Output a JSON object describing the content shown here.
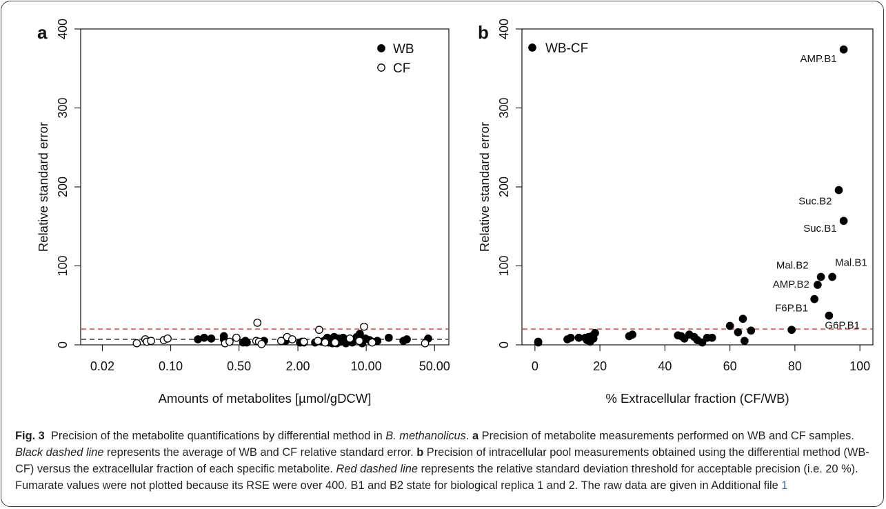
{
  "chart_data": [
    {
      "panel_label": "a",
      "type": "scatter",
      "xscale": "log",
      "xlim": [
        0.012,
        70
      ],
      "ylim": [
        0,
        400
      ],
      "xticks": [
        0.02,
        0.1,
        0.5,
        2,
        10,
        50
      ],
      "xtick_labels": [
        "0.02",
        "0.10",
        "0.50",
        "2.00",
        "10.00",
        "50.00"
      ],
      "yticks": [
        0,
        100,
        200,
        300,
        400
      ],
      "ytick_labels": [
        "0",
        "100",
        "200",
        "300",
        "400"
      ],
      "xlabel": "Amounts of metabolites [µmol/gDCW]",
      "ylabel": "Relative standard error",
      "legend_position": "top-right",
      "hlines": [
        {
          "y": 20,
          "color": "#e8302a",
          "style": "dashed"
        },
        {
          "y": 7,
          "color": "#222222",
          "style": "dashed"
        }
      ],
      "series": [
        {
          "name": "WB",
          "marker": "filled-circle",
          "points": [
            [
              0.19,
              7
            ],
            [
              0.22,
              9
            ],
            [
              0.26,
              8
            ],
            [
              0.35,
              11
            ],
            [
              0.35,
              7
            ],
            [
              0.55,
              3
            ],
            [
              0.58,
              5
            ],
            [
              0.6,
              3
            ],
            [
              0.9,
              5
            ],
            [
              1.5,
              5
            ],
            [
              2.1,
              3
            ],
            [
              2.2,
              4
            ],
            [
              2.3,
              3
            ],
            [
              3.0,
              3
            ],
            [
              3.5,
              4
            ],
            [
              3.8,
              6
            ],
            [
              4.0,
              9
            ],
            [
              4.1,
              3
            ],
            [
              4.3,
              7
            ],
            [
              4.5,
              2
            ],
            [
              4.7,
              10
            ],
            [
              4.9,
              5
            ],
            [
              5.0,
              2
            ],
            [
              5.2,
              8
            ],
            [
              5.5,
              4
            ],
            [
              5.8,
              9
            ],
            [
              6.2,
              2
            ],
            [
              6.8,
              5
            ],
            [
              7.2,
              3
            ],
            [
              8.0,
              10
            ],
            [
              8.6,
              14
            ],
            [
              9.1,
              2
            ],
            [
              9.8,
              8
            ],
            [
              10.8,
              6
            ],
            [
              11.5,
              4
            ],
            [
              13.0,
              5
            ],
            [
              17.0,
              9
            ],
            [
              24.0,
              5
            ],
            [
              26.0,
              7
            ],
            [
              43.0,
              8
            ]
          ]
        },
        {
          "name": "CF",
          "marker": "open-circle",
          "points": [
            [
              0.045,
              2
            ],
            [
              0.055,
              7
            ],
            [
              0.057,
              4
            ],
            [
              0.063,
              5
            ],
            [
              0.085,
              6
            ],
            [
              0.093,
              8
            ],
            [
              0.36,
              2
            ],
            [
              0.4,
              4
            ],
            [
              0.47,
              9
            ],
            [
              0.75,
              5
            ],
            [
              0.77,
              28
            ],
            [
              0.8,
              4
            ],
            [
              0.85,
              1
            ],
            [
              1.35,
              5
            ],
            [
              1.55,
              10
            ],
            [
              1.75,
              7
            ],
            [
              2.3,
              4
            ],
            [
              3.2,
              5
            ],
            [
              3.3,
              19
            ],
            [
              3.8,
              3
            ],
            [
              4.8,
              3
            ],
            [
              6.8,
              8
            ],
            [
              8.5,
              5
            ],
            [
              9.5,
              23
            ],
            [
              11.5,
              3
            ],
            [
              40.0,
              2
            ]
          ]
        }
      ]
    },
    {
      "panel_label": "b",
      "type": "scatter",
      "xlim": [
        -4,
        104
      ],
      "ylim": [
        0,
        400
      ],
      "xticks": [
        0,
        20,
        40,
        60,
        80,
        100
      ],
      "xtick_labels": [
        "0",
        "20",
        "40",
        "60",
        "80",
        "100"
      ],
      "yticks": [
        0,
        100,
        200,
        300,
        400
      ],
      "ytick_labels": [
        "0",
        "100",
        "200",
        "300",
        "400"
      ],
      "xlabel": "% Extracellular fraction (CF/WB)",
      "ylabel": "Relative standard error",
      "legend_position": "top-left",
      "hlines": [
        {
          "y": 20,
          "color": "#e8302a",
          "style": "dashed"
        }
      ],
      "series": [
        {
          "name": "WB-CF",
          "marker": "filled-circle",
          "points": [
            [
              1,
              3
            ],
            [
              1,
              4
            ],
            [
              10,
              7
            ],
            [
              11,
              9
            ],
            [
              13.5,
              9
            ],
            [
              15.5,
              9
            ],
            [
              16,
              6
            ],
            [
              16.5,
              10
            ],
            [
              17,
              4
            ],
            [
              17.5,
              11
            ],
            [
              18,
              8
            ],
            [
              18.5,
              15
            ],
            [
              29,
              11
            ],
            [
              30,
              13
            ],
            [
              44,
              12
            ],
            [
              45,
              11
            ],
            [
              46,
              8
            ],
            [
              47.5,
              13
            ],
            [
              49,
              10
            ],
            [
              50,
              6
            ],
            [
              51.5,
              3
            ],
            [
              53,
              9
            ],
            [
              54.5,
              9
            ],
            [
              60,
              24
            ],
            [
              62.5,
              16
            ],
            [
              64,
              33
            ],
            [
              64.5,
              5
            ],
            [
              66.5,
              18
            ],
            [
              79,
              19
            ],
            [
              86,
              58
            ],
            [
              87,
              76
            ],
            [
              88,
              86
            ],
            [
              90.5,
              37
            ],
            [
              91.5,
              86
            ],
            [
              93.5,
              196
            ],
            [
              95,
              157
            ],
            [
              95,
              374
            ]
          ],
          "labeled_points": [
            {
              "label": "AMP.B1",
              "x": 95,
              "y": 374
            },
            {
              "label": "Suc.B2",
              "x": 93.5,
              "y": 196
            },
            {
              "label": "Suc.B1",
              "x": 95,
              "y": 157
            },
            {
              "label": "Mal.B2",
              "x": 88,
              "y": 86
            },
            {
              "label": "Mal.B1",
              "x": 91.5,
              "y": 86
            },
            {
              "label": "AMP.B2",
              "x": 87,
              "y": 76
            },
            {
              "label": "F6P.B1",
              "x": 86,
              "y": 58
            },
            {
              "label": "G6P.B1",
              "x": 90.5,
              "y": 37
            }
          ]
        }
      ]
    }
  ],
  "caption": {
    "fig_label": "Fig. 3",
    "p1": "Precision of the metabolite quantifications by differential method in ",
    "p2_italic": "B. methanolicus",
    "p3": ". ",
    "p4_bold": "a",
    "p5": " Precision of metabolite measurements performed on WB and CF samples. ",
    "p6_italic": "Black dashed line",
    "p7": " represents the average of WB and CF relative standard error. ",
    "p8_bold": "b",
    "p9": " Precision of intracellular pool measurements obtained using the differential method (WB-CF) versus the extracellular fraction of each specific metabolite. ",
    "p10_italic": "Red dashed line",
    "p11": " represents the relative standard deviation threshold for acceptable precision (i.e. 20 %). Fumarate values were not plotted because its RSE were over 400. B1 and B2 state for biological replica 1 and 2. The raw data are given in Additional file ",
    "p12_link": "1"
  }
}
